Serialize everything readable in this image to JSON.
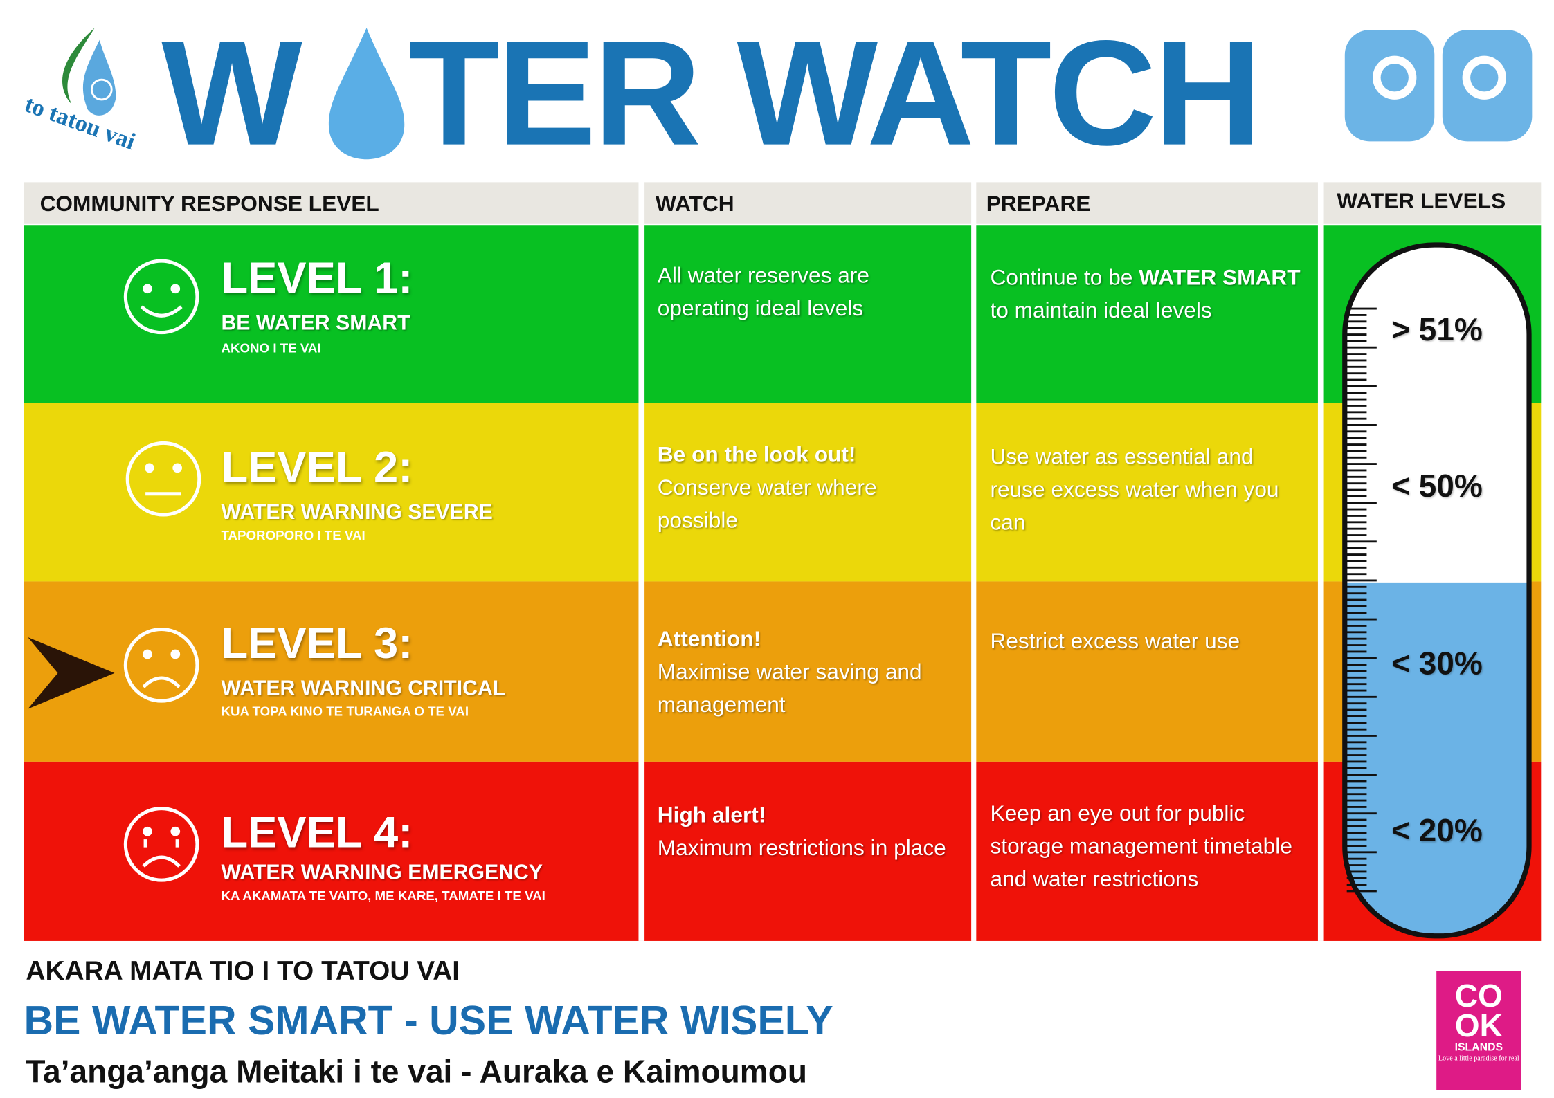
{
  "header": {
    "logo_text": "to tatou vai",
    "title_left": "W",
    "title_right": "TER WATCH"
  },
  "table": {
    "columns": [
      "COMMUNITY RESPONSE LEVEL",
      "WATCH",
      "PREPARE",
      "WATER LEVELS"
    ],
    "rows": [
      {
        "level": "LEVEL 1:",
        "name": "BE WATER SMART",
        "subname": "AKONO I TE VAI",
        "watch": [
          {
            "text": "All water reserves are operating ideal levels",
            "bold": false
          }
        ],
        "prepare": [
          {
            "text": "Continue to be ",
            "bold": false
          },
          {
            "text": "WATER SMART",
            "bold": true
          },
          {
            "text": " to maintain ideal levels",
            "bold": false
          }
        ],
        "water_level": "> 51%"
      },
      {
        "level": "LEVEL 2:",
        "name": "WATER WARNING SEVERE",
        "subname": "TAPOROPORO I TE VAI",
        "watch": [
          {
            "text": "Be on the look out!",
            "bold": true
          },
          {
            "text": "Conserve water where possible",
            "bold": false
          }
        ],
        "prepare": [
          {
            "text": "Use water as essential and reuse excess water when you can",
            "bold": false
          }
        ],
        "water_level": "< 50%"
      },
      {
        "level": "LEVEL 3:",
        "name": "WATER WARNING CRITICAL",
        "subname": "KUA TOPA KINO TE TURANGA O TE VAI",
        "watch": [
          {
            "text": "Attention!",
            "bold": true
          },
          {
            "text": "Maximise water saving and management",
            "bold": false
          }
        ],
        "prepare": [
          {
            "text": "Restrict excess water use",
            "bold": false
          }
        ],
        "water_level": "< 30%"
      },
      {
        "level": "LEVEL 4:",
        "name": "WATER WARNING EMERGENCY",
        "subname": "KA AKAMATA TE VAITO, ME KARE, TAMATE I TE VAI",
        "watch": [
          {
            "text": "High alert!",
            "bold": true
          },
          {
            "text": "Maximum restrictions in place",
            "bold": false
          }
        ],
        "prepare": [
          {
            "text": "Keep an eye out for public storage management timetable and water restrictions",
            "bold": false
          }
        ],
        "water_level": "< 20%"
      }
    ]
  },
  "footer": {
    "line1": "AKARA MATA TIO I TO TATOU VAI",
    "line2": "BE WATER SMART - USE WATER WISELY",
    "line3": "Ta’anga’anga Meitaki i te vai - Auraka e Kaimoumou",
    "badge": {
      "top": "CO",
      "bottom": "OK",
      "name": "ISLANDS",
      "tagline": "Love a little paradise for real"
    }
  }
}
